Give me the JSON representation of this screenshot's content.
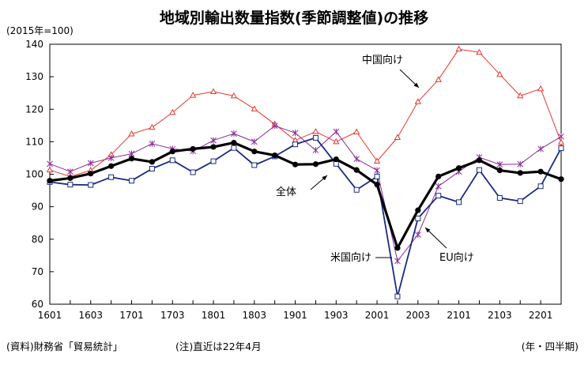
{
  "title": "地域別輸出数量指数(季節調整値)の推移",
  "unit_label": "(2015年=100)",
  "source": "(資料)財務省「貿易統計」",
  "note": "(注)直近は22年4月",
  "period_label": "(年・四半期)",
  "chart_data": {
    "type": "line",
    "title": "地域別輸出数量指数(季節調整値)の推移",
    "ylim": [
      60,
      140
    ],
    "yticks": [
      60,
      70,
      80,
      90,
      100,
      110,
      120,
      130,
      140
    ],
    "x": [
      "1601",
      "1602",
      "1603",
      "1604",
      "1701",
      "1702",
      "1703",
      "1704",
      "1801",
      "1802",
      "1803",
      "1804",
      "1901",
      "1902",
      "1903",
      "1904",
      "2001",
      "2002",
      "2003",
      "2004",
      "2101",
      "2102",
      "2103",
      "2104",
      "2201",
      "2204"
    ],
    "xtick_labels": [
      "1601",
      "1603",
      "1701",
      "1703",
      "1801",
      "1803",
      "1901",
      "1903",
      "2001",
      "2003",
      "2101",
      "2103",
      "2201"
    ],
    "grid": false,
    "series": [
      {
        "name": "全体",
        "color": "#000000",
        "values": [
          98.0,
          98.8,
          100.2,
          102.5,
          104.8,
          103.8,
          107.0,
          107.8,
          108.4,
          109.7,
          107.0,
          105.8,
          103.0,
          103.1,
          104.6,
          101.3,
          96.8,
          77.3,
          88.9,
          99.3,
          101.9,
          104.3,
          101.2,
          100.4,
          100.8,
          98.5
        ]
      },
      {
        "name": "中国向け",
        "color": "#e8362d",
        "values": [
          101.3,
          99.3,
          101.2,
          106.0,
          112.4,
          114.4,
          119.0,
          124.3,
          125.4,
          124.1,
          120.1,
          115.4,
          110.4,
          113.1,
          110.0,
          113.0,
          104.0,
          111.3,
          122.3,
          129.1,
          138.5,
          137.5,
          130.7,
          124.1,
          126.3,
          109.8
        ]
      },
      {
        "name": "米国向け",
        "color": "#1a2b80",
        "values": [
          97.6,
          96.8,
          96.7,
          99.1,
          98.0,
          101.7,
          104.3,
          100.6,
          104.0,
          108.1,
          102.8,
          105.5,
          109.2,
          111.2,
          103.2,
          95.2,
          99.3,
          62.4,
          86.4,
          93.4,
          91.4,
          101.3,
          92.7,
          91.7,
          96.3,
          108.0
        ]
      },
      {
        "name": "EU向け",
        "color": "#8a2a9a",
        "values": [
          103.2,
          100.8,
          103.4,
          105.0,
          106.3,
          109.4,
          107.8,
          107.1,
          110.4,
          112.5,
          110.0,
          114.9,
          112.7,
          107.4,
          113.1,
          104.7,
          101.2,
          73.3,
          81.4,
          96.3,
          100.8,
          105.2,
          103.0,
          103.1,
          107.8,
          111.6
        ]
      }
    ],
    "annotations": [
      {
        "text": "中国向け"
      },
      {
        "text": "全体"
      },
      {
        "text": "米国向け"
      },
      {
        "text": "EU向け"
      }
    ]
  }
}
